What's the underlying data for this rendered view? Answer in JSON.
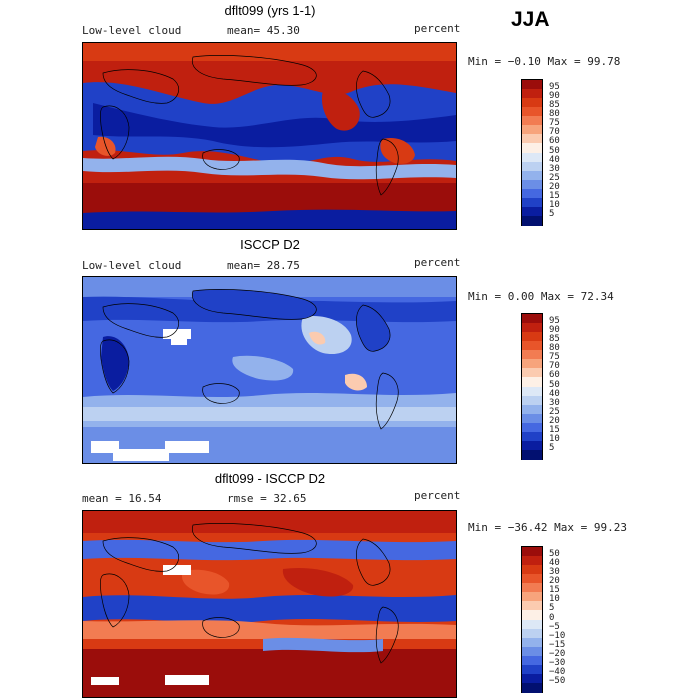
{
  "season": "JJA",
  "panels": [
    {
      "id": "model",
      "title": "dflt099 (yrs 1-1)",
      "left_text": "Low-level cloud",
      "mid_text": "mean=  45.30",
      "right_text": "percent",
      "minmax_text": "Min =  −0.10 Max =  99.78",
      "colorbar": {
        "labels": [
          "95",
          "90",
          "85",
          "80",
          "75",
          "70",
          "60",
          "50",
          "40",
          "30",
          "25",
          "20",
          "15",
          "10",
          "5"
        ],
        "colors": [
          "#9b0d0b",
          "#c0200f",
          "#d83a13",
          "#e8552a",
          "#f27c52",
          "#f7a47c",
          "#fbcbb0",
          "#fdf0e6",
          "#dde8f6",
          "#bcd1f1",
          "#93b2ec",
          "#6b8ee6",
          "#4568e1",
          "#2041c7",
          "#0a1da0",
          "#021070"
        ]
      }
    },
    {
      "id": "obs",
      "title": "ISCCP D2",
      "left_text": "Low-level cloud",
      "mid_text": "mean=  28.75",
      "right_text": "percent",
      "minmax_text": "Min =   0.00 Max =  72.34",
      "colorbar": {
        "labels": [
          "95",
          "90",
          "85",
          "80",
          "75",
          "70",
          "60",
          "50",
          "40",
          "30",
          "25",
          "20",
          "15",
          "10",
          "5"
        ],
        "colors": [
          "#9b0d0b",
          "#c0200f",
          "#d83a13",
          "#e8552a",
          "#f27c52",
          "#f7a47c",
          "#fbcbb0",
          "#fdf0e6",
          "#dde8f6",
          "#bcd1f1",
          "#93b2ec",
          "#6b8ee6",
          "#4568e1",
          "#2041c7",
          "#0a1da0",
          "#021070"
        ]
      }
    },
    {
      "id": "diff",
      "title": "dflt099 - ISCCP D2",
      "left_text": "mean =   16.54",
      "mid_text": "rmse =   32.65",
      "right_text": "percent",
      "minmax_text": "Min = −36.42 Max =  99.23",
      "colorbar": {
        "labels": [
          "50",
          "40",
          "30",
          "20",
          "15",
          "10",
          "5",
          "0",
          "−5",
          "−10",
          "−15",
          "−20",
          "−30",
          "−40",
          "−50"
        ],
        "colors": [
          "#9b0d0b",
          "#c0200f",
          "#d83a13",
          "#e8552a",
          "#f27c52",
          "#f7a47c",
          "#fbcbb0",
          "#fdf0e6",
          "#dde8f6",
          "#bcd1f1",
          "#93b2ec",
          "#6b8ee6",
          "#4568e1",
          "#2041c7",
          "#0a1da0",
          "#021070"
        ]
      }
    }
  ]
}
